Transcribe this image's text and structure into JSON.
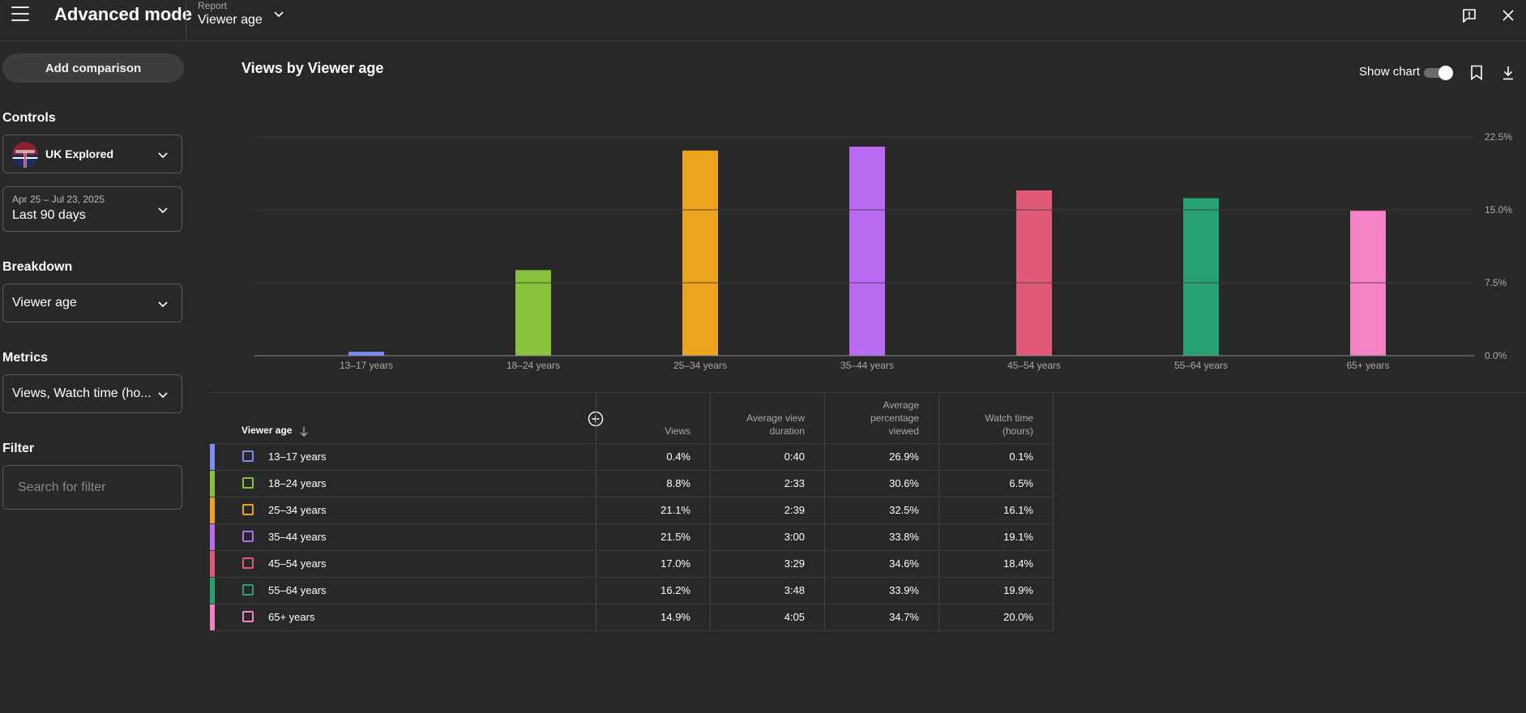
{
  "header": {
    "title": "Advanced mode",
    "report_label": "Report",
    "report_value": "Viewer age"
  },
  "sidebar": {
    "add_comparison": "Add comparison",
    "controls_label": "Controls",
    "channel_name": "UK Explored",
    "date_range": "Apr 25 – Jul 23, 2025",
    "date_preset": "Last 90 days",
    "breakdown_label": "Breakdown",
    "breakdown_value": "Viewer age",
    "metrics_label": "Metrics",
    "metrics_value": "Views, Watch time (ho...",
    "filter_label": "Filter",
    "filter_placeholder": "Search for filter"
  },
  "chart": {
    "title": "Views by Viewer age",
    "show_chart_label": "Show chart",
    "show_chart_on": true
  },
  "chart_data": {
    "type": "bar",
    "categories": [
      "13–17 years",
      "18–24 years",
      "25–34 years",
      "35–44 years",
      "45–54 years",
      "55–64 years",
      "65+ years"
    ],
    "values": [
      0.4,
      8.8,
      21.1,
      21.5,
      17.0,
      16.2,
      14.9
    ],
    "colors": [
      "#7b8cf4",
      "#86c23a",
      "#eca31d",
      "#b96cf3",
      "#e05a78",
      "#27a273",
      "#f383c4"
    ],
    "ylim": [
      0,
      22.5
    ],
    "yticks": [
      "0.0%",
      "7.5%",
      "15.0%",
      "22.5%"
    ],
    "ytick_values": [
      0,
      7.5,
      15,
      22.5
    ],
    "grid": true
  },
  "table": {
    "columns": [
      "Viewer age",
      "Views",
      "Average view duration",
      "Average percentage viewed",
      "Watch time (hours)"
    ],
    "rows": [
      {
        "label": "13–17 years",
        "color": "#7b8cf4",
        "views": "0.4%",
        "avd": "0:40",
        "apv": "26.9%",
        "watch": "0.1%"
      },
      {
        "label": "18–24 years",
        "color": "#86c23a",
        "views": "8.8%",
        "avd": "2:33",
        "apv": "30.6%",
        "watch": "6.5%"
      },
      {
        "label": "25–34 years",
        "color": "#eca31d",
        "views": "21.1%",
        "avd": "2:39",
        "apv": "32.5%",
        "watch": "16.1%"
      },
      {
        "label": "35–44 years",
        "color": "#b96cf3",
        "views": "21.5%",
        "avd": "3:00",
        "apv": "33.8%",
        "watch": "19.1%"
      },
      {
        "label": "45–54 years",
        "color": "#e05a78",
        "views": "17.0%",
        "avd": "3:29",
        "apv": "34.6%",
        "watch": "18.4%"
      },
      {
        "label": "55–64 years",
        "color": "#27a273",
        "views": "16.2%",
        "avd": "3:48",
        "apv": "33.9%",
        "watch": "19.9%"
      },
      {
        "label": "65+ years",
        "color": "#f383c4",
        "views": "14.9%",
        "avd": "4:05",
        "apv": "34.7%",
        "watch": "20.0%"
      }
    ]
  }
}
